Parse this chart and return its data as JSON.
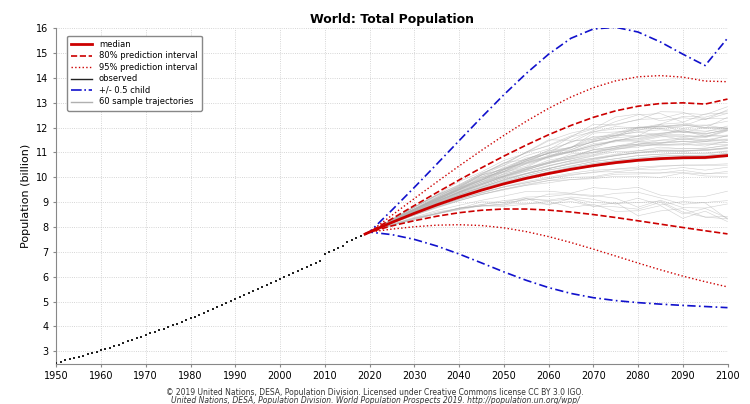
{
  "title": "World: Total Population",
  "ylabel": "Population (billion)",
  "xlim": [
    1950,
    2100
  ],
  "ylim": [
    2.5,
    16
  ],
  "yticks": [
    3,
    4,
    5,
    6,
    7,
    8,
    9,
    10,
    11,
    12,
    13,
    14,
    15,
    16
  ],
  "xticks": [
    1950,
    1960,
    1970,
    1980,
    1990,
    2000,
    2010,
    2020,
    2030,
    2040,
    2050,
    2060,
    2070,
    2080,
    2090,
    2100
  ],
  "footnote1": "© 2019 United Nations, DESA, Population Division. Licensed under Creative Commons license CC BY 3.0 IGO.",
  "footnote2": "United Nations, DESA, Population Division. World Population Prospects 2019. http://population.un.org/wpp/",
  "observed_years": [
    1950,
    1951,
    1952,
    1953,
    1954,
    1955,
    1956,
    1957,
    1958,
    1959,
    1960,
    1961,
    1962,
    1963,
    1964,
    1965,
    1966,
    1967,
    1968,
    1969,
    1970,
    1971,
    1972,
    1973,
    1974,
    1975,
    1976,
    1977,
    1978,
    1979,
    1980,
    1981,
    1982,
    1983,
    1984,
    1985,
    1986,
    1987,
    1988,
    1989,
    1990,
    1991,
    1992,
    1993,
    1994,
    1995,
    1996,
    1997,
    1998,
    1999,
    2000,
    2001,
    2002,
    2003,
    2004,
    2005,
    2006,
    2007,
    2008,
    2009,
    2010,
    2011,
    2012,
    2013,
    2014,
    2015,
    2016,
    2017,
    2018,
    2019
  ],
  "observed_values": [
    2.536,
    2.584,
    2.63,
    2.677,
    2.724,
    2.773,
    2.824,
    2.875,
    2.927,
    2.98,
    3.034,
    3.09,
    3.148,
    3.208,
    3.268,
    3.329,
    3.39,
    3.451,
    3.515,
    3.58,
    3.646,
    3.714,
    3.781,
    3.847,
    3.912,
    3.976,
    4.04,
    4.107,
    4.177,
    4.248,
    4.321,
    4.395,
    4.47,
    4.543,
    4.616,
    4.69,
    4.766,
    4.844,
    4.924,
    5.006,
    5.088,
    5.17,
    5.25,
    5.329,
    5.408,
    5.489,
    5.572,
    5.657,
    5.742,
    5.826,
    5.909,
    5.99,
    6.069,
    6.147,
    6.224,
    6.301,
    6.382,
    6.464,
    6.549,
    6.633,
    6.922,
    7.0,
    7.079,
    7.161,
    7.244,
    7.383,
    7.465,
    7.548,
    7.632,
    7.714
  ],
  "median_years": [
    2019,
    2020,
    2025,
    2030,
    2035,
    2040,
    2045,
    2050,
    2055,
    2060,
    2065,
    2070,
    2075,
    2080,
    2085,
    2090,
    2095,
    2100
  ],
  "median_values": [
    7.714,
    7.795,
    8.185,
    8.548,
    8.887,
    9.198,
    9.481,
    9.735,
    9.957,
    10.151,
    10.322,
    10.469,
    10.591,
    10.685,
    10.752,
    10.788,
    10.797,
    10.875
  ],
  "pi80_high": [
    7.714,
    7.795,
    8.329,
    8.861,
    9.382,
    9.889,
    10.38,
    10.851,
    11.296,
    11.712,
    12.087,
    12.413,
    12.676,
    12.862,
    12.971,
    12.998,
    12.949,
    13.149
  ],
  "pi80_low": [
    7.714,
    7.795,
    8.046,
    8.252,
    8.432,
    8.574,
    8.673,
    8.724,
    8.723,
    8.68,
    8.603,
    8.501,
    8.381,
    8.25,
    8.115,
    7.98,
    7.849,
    7.722
  ],
  "pi95_high": [
    7.714,
    7.795,
    8.469,
    9.143,
    9.806,
    10.454,
    11.081,
    11.684,
    12.253,
    12.773,
    13.231,
    13.607,
    13.883,
    14.047,
    14.095,
    14.033,
    13.876,
    13.849
  ],
  "pi95_low": [
    7.714,
    7.795,
    7.915,
    8.009,
    8.073,
    8.092,
    8.059,
    7.966,
    7.815,
    7.614,
    7.375,
    7.11,
    6.831,
    6.549,
    6.277,
    6.023,
    5.797,
    5.588
  ],
  "blue_high_years": [
    2019,
    2020,
    2025,
    2030,
    2035,
    2040,
    2045,
    2050,
    2055,
    2060,
    2065,
    2070,
    2075,
    2080,
    2085,
    2090,
    2095,
    2100
  ],
  "blue_high": [
    7.714,
    7.795,
    8.678,
    9.59,
    10.525,
    11.47,
    12.408,
    13.319,
    14.177,
    14.953,
    15.596,
    15.97,
    16.04,
    15.85,
    15.45,
    14.96,
    14.5,
    15.6
  ],
  "blue_low_years": [
    2019,
    2020,
    2025,
    2030,
    2035,
    2040,
    2045,
    2050,
    2055,
    2060,
    2065,
    2070,
    2075,
    2080,
    2085,
    2090,
    2095,
    2100
  ],
  "blue_low": [
    7.714,
    7.795,
    7.692,
    7.502,
    7.236,
    6.913,
    6.556,
    6.194,
    5.855,
    5.561,
    5.325,
    5.154,
    5.037,
    4.955,
    4.894,
    4.843,
    4.798,
    4.753
  ],
  "bg_color": "#ffffff",
  "grid_color": "#c8c8c8",
  "observed_color": "#222222",
  "median_color": "#cc0000",
  "pi80_color": "#cc0000",
  "pi95_color": "#cc0000",
  "blue_color": "#1111cc",
  "sample_color": "#b0b0b0",
  "n_sample": 60
}
